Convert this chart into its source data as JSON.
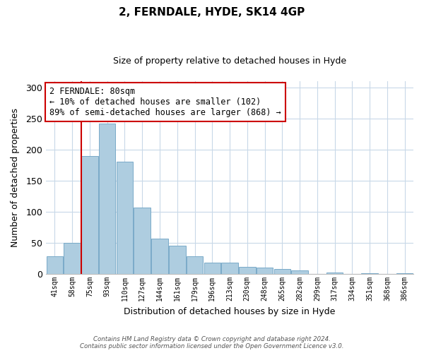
{
  "title": "2, FERNDALE, HYDE, SK14 4GP",
  "subtitle": "Size of property relative to detached houses in Hyde",
  "xlabel": "Distribution of detached houses by size in Hyde",
  "ylabel": "Number of detached properties",
  "categories": [
    "41sqm",
    "58sqm",
    "75sqm",
    "93sqm",
    "110sqm",
    "127sqm",
    "144sqm",
    "161sqm",
    "179sqm",
    "196sqm",
    "213sqm",
    "230sqm",
    "248sqm",
    "265sqm",
    "282sqm",
    "299sqm",
    "317sqm",
    "334sqm",
    "351sqm",
    "368sqm",
    "386sqm"
  ],
  "values": [
    28,
    50,
    190,
    242,
    181,
    107,
    57,
    46,
    28,
    18,
    18,
    12,
    10,
    8,
    6,
    0,
    2,
    0,
    1,
    0,
    1
  ],
  "bar_color": "#aecde0",
  "bar_edge_color": "#7aaac8",
  "vline_x_idx": 2,
  "vline_color": "#cc0000",
  "annotation_line1": "2 FERNDALE: 80sqm",
  "annotation_line2": "← 10% of detached houses are smaller (102)",
  "annotation_line3": "89% of semi-detached houses are larger (868) →",
  "annotation_box_color": "#ffffff",
  "annotation_box_edge": "#cc0000",
  "ylim": [
    0,
    310
  ],
  "yticks": [
    0,
    50,
    100,
    150,
    200,
    250,
    300
  ],
  "footer_line1": "Contains HM Land Registry data © Crown copyright and database right 2024.",
  "footer_line2": "Contains public sector information licensed under the Open Government Licence v3.0.",
  "background_color": "#ffffff",
  "grid_color": "#c8d8e8",
  "title_fontsize": 11,
  "subtitle_fontsize": 9
}
